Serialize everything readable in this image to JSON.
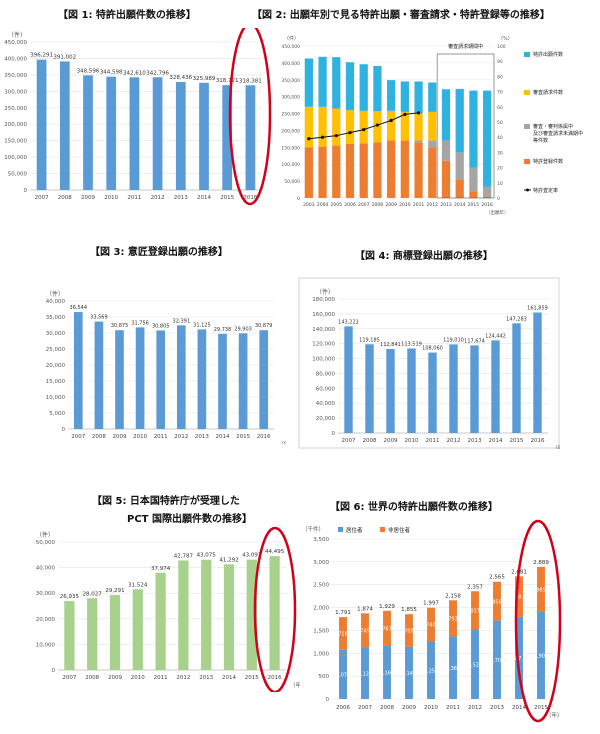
{
  "page": {
    "fig1_title": "【図 1: 特許出願件数の推移】",
    "fig2_title": "【図 2: 出願年別で見る特許出願・審査請求・特許登録等の推移】",
    "fig3_title": "【図 3: 意匠登録出願の推移】",
    "fig4_title": "【図 4: 商標登録出願の推移】",
    "fig5_title_line1": "【図 5: 日本国特許庁が受理した",
    "fig5_title_line2": "PCT 国際出願件数の推移】",
    "fig6_title": "【図 6: 世界の特許出願件数の推移】"
  },
  "colors": {
    "blue": "#5b9bd5",
    "green": "#a9d18e",
    "orange": "#ed7d31",
    "cyan": "#2fb2e0",
    "yellow": "#ffc000",
    "gray": "#a5a5a5",
    "highlight": "#d0021b"
  },
  "chart_data": [
    {
      "id": "fig1",
      "type": "bar",
      "ylabel": "（件）",
      "categories": [
        "2007",
        "2008",
        "2009",
        "2010",
        "2011",
        "2012",
        "2013",
        "2014",
        "2015",
        "2016"
      ],
      "values": [
        396291,
        391002,
        348596,
        344598,
        342610,
        342796,
        328436,
        325989,
        318721,
        318381
      ],
      "labels": [
        "396,291",
        "391,002",
        "348,596",
        "344,598",
        "342,610",
        "342,796",
        "328,436",
        "325,989",
        "318,721",
        "318,381"
      ],
      "ylim": [
        0,
        450000
      ],
      "yticks": [
        "0",
        "50,000",
        "100,000",
        "150,000",
        "200,000",
        "250,000",
        "300,000",
        "350,000",
        "400,000",
        "450,000"
      ],
      "highlight_index": 9
    },
    {
      "id": "fig2",
      "type": "bar",
      "stacked": true,
      "ylabel": "（件）",
      "y2label": "（%）",
      "categories": [
        "2003",
        "2004",
        "2005",
        "2006",
        "2007",
        "2008",
        "2009",
        "2010",
        "2011",
        "2012",
        "2013",
        "2014",
        "2015",
        "2016"
      ],
      "xlabel_right": "（出願年）",
      "series": [
        {
          "name": "特許登録件数",
          "values": [
            150000,
            152000,
            155000,
            160000,
            162000,
            165000,
            170000,
            170000,
            165000,
            150000,
            110000,
            55000,
            20000,
            3000
          ]
        },
        {
          "name": "審査・審判係属中 及び審査請求未満期中 等件数",
          "values": [
            0,
            0,
            0,
            0,
            0,
            0,
            0,
            0,
            5000,
            20000,
            60000,
            80000,
            70000,
            30000
          ]
        },
        {
          "name": "審査請求件数",
          "values": [
            120000,
            118000,
            110000,
            100000,
            96000,
            92000,
            88000,
            85000,
            80000,
            85000,
            0,
            0,
            0,
            0
          ]
        },
        {
          "name": "特許出願件数",
          "values": [
            143000,
            148000,
            152000,
            142000,
            138000,
            134000,
            91000,
            90000,
            95000,
            87000,
            152000,
            188000,
            228000,
            285000
          ]
        }
      ],
      "rate_series": {
        "name": "特許査定率",
        "values": [
          39,
          40,
          41,
          43,
          45,
          48,
          51,
          55,
          56,
          null,
          null,
          null,
          null,
          null
        ]
      },
      "ylim": [
        0,
        450000
      ],
      "y2lim": [
        0,
        100
      ],
      "yticks": [
        "0",
        "50,000",
        "100,000",
        "150,000",
        "200,000",
        "250,000",
        "300,000",
        "350,000",
        "400,000",
        "450,000"
      ],
      "y2ticks": [
        "0",
        "10",
        "20",
        "30",
        "40",
        "50",
        "60",
        "70",
        "80",
        "90",
        "100"
      ],
      "annotation": "審査請求期間中"
    },
    {
      "id": "fig3",
      "type": "bar",
      "ylabel": "（件）",
      "xlabel_right": "（年）",
      "categories": [
        "2007",
        "2008",
        "2009",
        "2010",
        "2011",
        "2012",
        "2013",
        "2014",
        "2015",
        "2016"
      ],
      "values": [
        36544,
        33569,
        30875,
        31756,
        30805,
        32391,
        31125,
        29738,
        29903,
        30879
      ],
      "labels": [
        "36,544",
        "33,569",
        "30,875",
        "31,756",
        "30,805",
        "32,391",
        "31,125",
        "29,738",
        "29,903",
        "30,879"
      ],
      "ylim": [
        0,
        40000
      ],
      "yticks": [
        "0",
        "5,000",
        "10,000",
        "15,000",
        "20,000",
        "25,000",
        "30,000",
        "35,000",
        "40,000"
      ]
    },
    {
      "id": "fig4",
      "type": "bar",
      "ylabel": "（件）",
      "xlabel_right": "（年）",
      "categories": [
        "2007",
        "2008",
        "2009",
        "2010",
        "2011",
        "2012",
        "2013",
        "2014",
        "2015",
        "2016"
      ],
      "values": [
        143221,
        119185,
        112841,
        113519,
        108060,
        119010,
        117674,
        124442,
        147283,
        161859
      ],
      "labels": [
        "143,221",
        "119,185",
        "112,841",
        "113,519",
        "108,060",
        "119,010",
        "117,674",
        "124,442",
        "147,283",
        "161,859"
      ],
      "ylim": [
        0,
        180000
      ],
      "yticks": [
        "0",
        "20,000",
        "40,000",
        "60,000",
        "80,000",
        "100,000",
        "120,000",
        "140,000",
        "160,000",
        "180,000"
      ]
    },
    {
      "id": "fig5",
      "type": "bar",
      "ylabel": "（件）",
      "xlabel_right": "（年）",
      "categories": [
        "2007",
        "2008",
        "2009",
        "2010",
        "2011",
        "2012",
        "2013",
        "2014",
        "2015",
        "2016"
      ],
      "values": [
        26935,
        28027,
        29291,
        31524,
        37974,
        42787,
        43075,
        41292,
        43097,
        44495
      ],
      "labels": [
        "26,935",
        "28,027",
        "29,291",
        "31,524",
        "37,974",
        "42,787",
        "43,075",
        "41,292",
        "43,097",
        "44,495"
      ],
      "ylim": [
        0,
        50000
      ],
      "yticks": [
        "0",
        "10,000",
        "20,000",
        "30,000",
        "40,000",
        "50,000"
      ],
      "highlight_index": 9
    },
    {
      "id": "fig6",
      "type": "bar",
      "stacked": true,
      "ylabel": "（千件）",
      "xlabel_right": "（年）",
      "categories": [
        "2006",
        "2007",
        "2008",
        "2009",
        "2010",
        "2011",
        "2012",
        "2013",
        "2014",
        "2015"
      ],
      "series": [
        {
          "name": "居住者",
          "values": [
            1075,
            1125,
            1162,
            1146,
            1257,
            1365,
            1520,
            1709,
            1797,
            1904
          ],
          "labels": [
            "1,075",
            "1,125",
            "1,162",
            "1,146",
            "1,257",
            "1,365",
            "1,520",
            "1,709",
            "1,7..",
            "1,904"
          ]
        },
        {
          "name": "非居住者",
          "values": [
            716,
            749,
            767,
            709,
            740,
            793,
            837,
            856,
            884,
            985
          ],
          "labels": [
            "716",
            "749",
            "767",
            "709",
            "740",
            "793",
            "837",
            "856",
            "88.",
            "985"
          ]
        }
      ],
      "totals": [
        "1,791",
        "1,874",
        "1,929",
        "1,855",
        "1,997",
        "2,158",
        "2,357",
        "2,565",
        "2,681",
        "2,889"
      ],
      "ylim": [
        0,
        3500
      ],
      "yticks": [
        "0",
        "500",
        "1,000",
        "1,500",
        "2,000",
        "2,500",
        "3,000",
        "3,500"
      ],
      "highlight_index": 9
    }
  ]
}
